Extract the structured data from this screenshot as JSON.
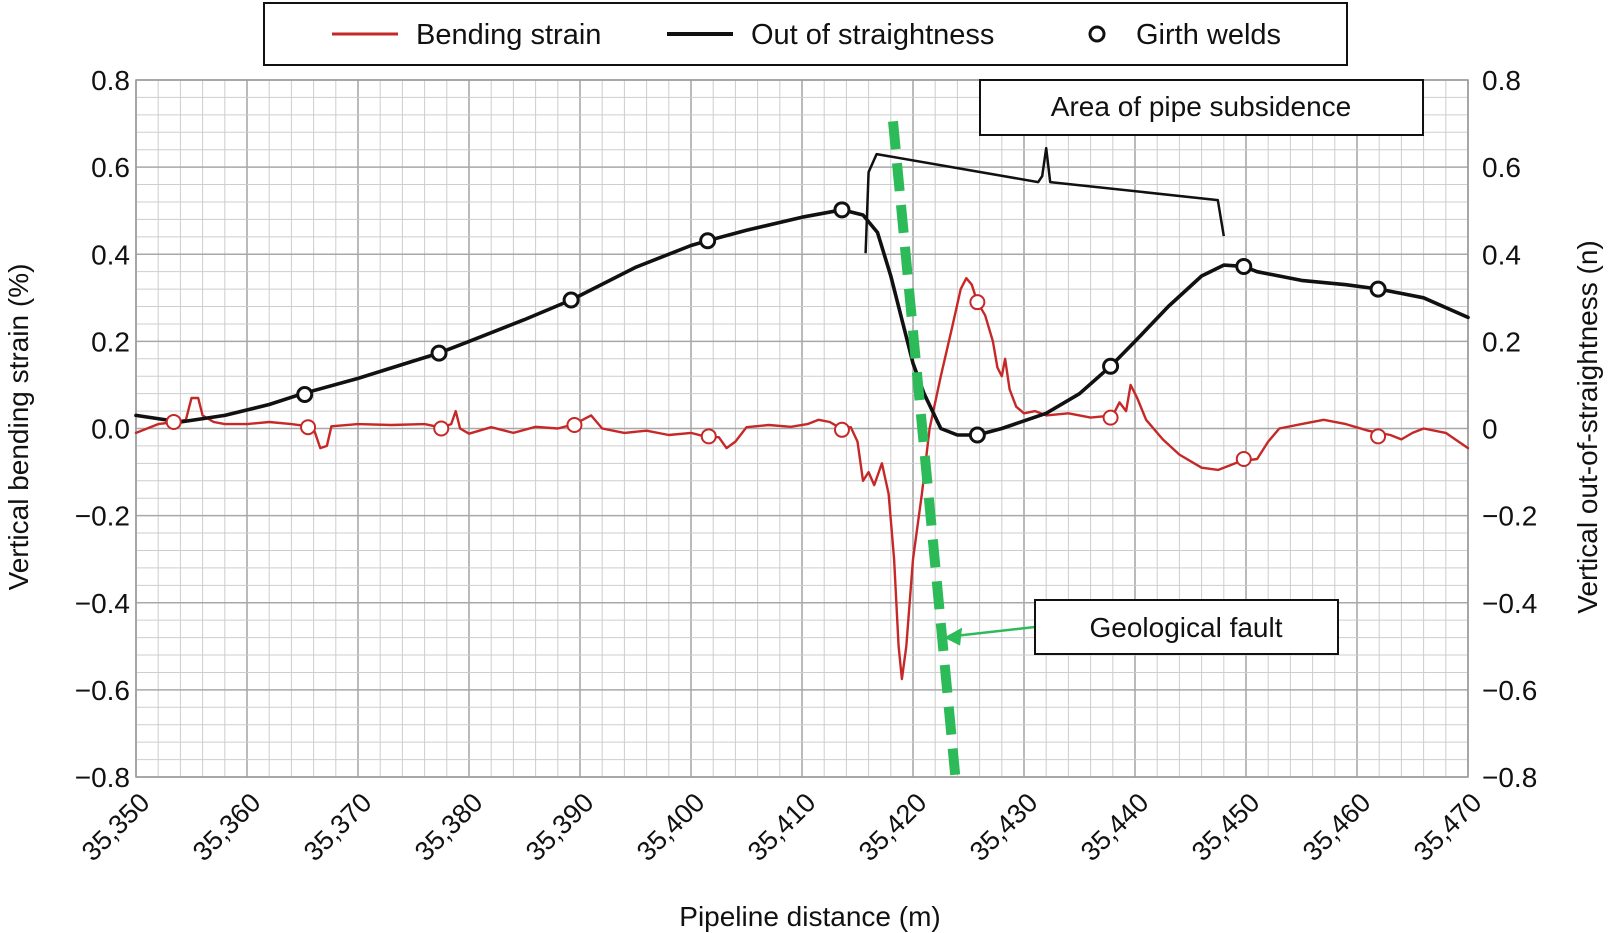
{
  "chart_data": {
    "type": "line",
    "title": "",
    "xlabel": "Pipeline distance (m)",
    "ylabel_left": "Vertical bending strain (%)",
    "ylabel_right": "Vertical out-of-straightness (n)",
    "xlim": [
      35350,
      35470
    ],
    "ylim": [
      -0.8,
      0.8
    ],
    "grid": true,
    "legend_position": "top-center",
    "x_ticks": [
      {
        "value": 35350,
        "label": "35,350"
      },
      {
        "value": 35360,
        "label": "35,360"
      },
      {
        "value": 35370,
        "label": "35,370"
      },
      {
        "value": 35380,
        "label": "35,380"
      },
      {
        "value": 35390,
        "label": "35,390"
      },
      {
        "value": 35400,
        "label": "35,400"
      },
      {
        "value": 35410,
        "label": "35,410"
      },
      {
        "value": 35420,
        "label": "35,420"
      },
      {
        "value": 35430,
        "label": "35,430"
      },
      {
        "value": 35440,
        "label": "35,440"
      },
      {
        "value": 35450,
        "label": "35,450"
      },
      {
        "value": 35460,
        "label": "35,460"
      },
      {
        "value": 35470,
        "label": "35,470"
      }
    ],
    "y_ticks_left": [
      {
        "value": 0.8,
        "label": "0.8"
      },
      {
        "value": 0.6,
        "label": "0.6"
      },
      {
        "value": 0.4,
        "label": "0.4"
      },
      {
        "value": 0.2,
        "label": "0.2"
      },
      {
        "value": 0.0,
        "label": "0.0"
      },
      {
        "value": -0.2,
        "label": "−0.2"
      },
      {
        "value": -0.4,
        "label": "−0.4"
      },
      {
        "value": -0.6,
        "label": "−0.6"
      },
      {
        "value": -0.8,
        "label": "−0.8"
      }
    ],
    "y_ticks_right": [
      {
        "value": 0.8,
        "label": "0.8"
      },
      {
        "value": 0.6,
        "label": "0.6"
      },
      {
        "value": 0.4,
        "label": "0.4"
      },
      {
        "value": 0.2,
        "label": "0.2"
      },
      {
        "value": 0.0,
        "label": "0"
      },
      {
        "value": -0.2,
        "label": "−0.2"
      },
      {
        "value": -0.4,
        "label": "−0.4"
      },
      {
        "value": -0.6,
        "label": "−0.6"
      },
      {
        "value": -0.8,
        "label": "−0.8"
      }
    ],
    "series": [
      {
        "name": "Bending strain",
        "color": "#c62828",
        "points": [
          [
            35350,
            -0.01
          ],
          [
            35352,
            0.01
          ],
          [
            35353.5,
            0.015
          ],
          [
            35354.5,
            0.02
          ],
          [
            35355,
            0.07
          ],
          [
            35355.6,
            0.07
          ],
          [
            35356,
            0.03
          ],
          [
            35357,
            0.015
          ],
          [
            35358,
            0.01
          ],
          [
            35360,
            0.01
          ],
          [
            35362,
            0.015
          ],
          [
            35364,
            0.01
          ],
          [
            35365.5,
            0.005
          ],
          [
            35366,
            0.0
          ],
          [
            35366.6,
            -0.045
          ],
          [
            35367.2,
            -0.04
          ],
          [
            35367.6,
            0.005
          ],
          [
            35370,
            0.01
          ],
          [
            35373,
            0.008
          ],
          [
            35376,
            0.01
          ],
          [
            35377.5,
            0.002
          ],
          [
            35378.4,
            0.01
          ],
          [
            35378.8,
            0.04
          ],
          [
            35379.2,
            0.0
          ],
          [
            35380,
            -0.012
          ],
          [
            35382,
            0.003
          ],
          [
            35384,
            -0.01
          ],
          [
            35386,
            0.004
          ],
          [
            35388,
            0.0
          ],
          [
            35389.5,
            0.01
          ],
          [
            35391,
            0.03
          ],
          [
            35392,
            0.0
          ],
          [
            35394,
            -0.01
          ],
          [
            35396,
            -0.005
          ],
          [
            35398,
            -0.015
          ],
          [
            35400,
            -0.01
          ],
          [
            35401.5,
            -0.02
          ],
          [
            35402.5,
            -0.02
          ],
          [
            35403.2,
            -0.045
          ],
          [
            35404,
            -0.03
          ],
          [
            35405,
            0.003
          ],
          [
            35407,
            0.008
          ],
          [
            35409,
            0.004
          ],
          [
            35410.5,
            0.01
          ],
          [
            35411.5,
            0.02
          ],
          [
            35412.5,
            0.015
          ],
          [
            35413.5,
            0.0
          ],
          [
            35414.4,
            0.003
          ],
          [
            35415,
            -0.03
          ],
          [
            35415.5,
            -0.12
          ],
          [
            35416,
            -0.1
          ],
          [
            35416.5,
            -0.13
          ],
          [
            35417.2,
            -0.08
          ],
          [
            35417.8,
            -0.15
          ],
          [
            35418.3,
            -0.3
          ],
          [
            35418.7,
            -0.5
          ],
          [
            35419,
            -0.575
          ],
          [
            35419.4,
            -0.5
          ],
          [
            35420,
            -0.3
          ],
          [
            35420.8,
            -0.15
          ],
          [
            35421.5,
            0.0
          ],
          [
            35422.5,
            0.12
          ],
          [
            35423.5,
            0.23
          ],
          [
            35424.3,
            0.32
          ],
          [
            35424.8,
            0.345
          ],
          [
            35425.3,
            0.33
          ],
          [
            35425.8,
            0.29
          ],
          [
            35426.5,
            0.26
          ],
          [
            35427.2,
            0.2
          ],
          [
            35427.6,
            0.14
          ],
          [
            35428,
            0.12
          ],
          [
            35428.3,
            0.16
          ],
          [
            35428.7,
            0.09
          ],
          [
            35429.3,
            0.05
          ],
          [
            35430,
            0.035
          ],
          [
            35431,
            0.04
          ],
          [
            35432,
            0.03
          ],
          [
            35434,
            0.035
          ],
          [
            35436,
            0.025
          ],
          [
            35438,
            0.03
          ],
          [
            35438.6,
            0.06
          ],
          [
            35439.2,
            0.04
          ],
          [
            35439.6,
            0.1
          ],
          [
            35440.2,
            0.07
          ],
          [
            35441,
            0.02
          ],
          [
            35442.5,
            -0.025
          ],
          [
            35444,
            -0.06
          ],
          [
            35446,
            -0.09
          ],
          [
            35447.5,
            -0.095
          ],
          [
            35449.5,
            -0.075
          ],
          [
            35451,
            -0.07
          ],
          [
            35452,
            -0.03
          ],
          [
            35453,
            0.0
          ],
          [
            35455,
            0.01
          ],
          [
            35457,
            0.02
          ],
          [
            35459,
            0.01
          ],
          [
            35461,
            -0.005
          ],
          [
            35463,
            -0.015
          ],
          [
            35464,
            -0.025
          ],
          [
            35465,
            -0.01
          ],
          [
            35466,
            0.0
          ],
          [
            35468,
            -0.01
          ],
          [
            35470,
            -0.045
          ]
        ]
      },
      {
        "name": "Out of straightness",
        "color": "#111111",
        "points": [
          [
            35350,
            0.03
          ],
          [
            35354,
            0.015
          ],
          [
            35358,
            0.03
          ],
          [
            35362,
            0.055
          ],
          [
            35365,
            0.08
          ],
          [
            35370,
            0.115
          ],
          [
            35375,
            0.155
          ],
          [
            35377.3,
            0.173
          ],
          [
            35380,
            0.2
          ],
          [
            35385,
            0.25
          ],
          [
            35389.2,
            0.295
          ],
          [
            35395,
            0.37
          ],
          [
            35400,
            0.42
          ],
          [
            35401.5,
            0.431
          ],
          [
            35405,
            0.455
          ],
          [
            35410,
            0.485
          ],
          [
            35413.6,
            0.502
          ],
          [
            35415.5,
            0.49
          ],
          [
            35416.8,
            0.45
          ],
          [
            35418,
            0.35
          ],
          [
            35419,
            0.25
          ],
          [
            35420,
            0.15
          ],
          [
            35421,
            0.08
          ],
          [
            35422.5,
            0.0
          ],
          [
            35424,
            -0.015
          ],
          [
            35425.8,
            -0.015
          ],
          [
            35428,
            0.0
          ],
          [
            35432,
            0.035
          ],
          [
            35435,
            0.08
          ],
          [
            35437.8,
            0.143
          ],
          [
            35440,
            0.2
          ],
          [
            35443,
            0.28
          ],
          [
            35446,
            0.35
          ],
          [
            35448,
            0.375
          ],
          [
            35449.8,
            0.372
          ],
          [
            35451,
            0.36
          ],
          [
            35455,
            0.34
          ],
          [
            35459,
            0.33
          ],
          [
            35462,
            0.32
          ],
          [
            35466,
            0.3
          ],
          [
            35470,
            0.255
          ]
        ]
      }
    ],
    "girth_welds_straightness": [
      [
        35365.2,
        0.078
      ],
      [
        35377.3,
        0.173
      ],
      [
        35389.2,
        0.295
      ],
      [
        35401.5,
        0.431
      ],
      [
        35413.6,
        0.502
      ],
      [
        35425.8,
        -0.015
      ],
      [
        35437.8,
        0.143
      ],
      [
        35449.8,
        0.372
      ],
      [
        35461.9,
        0.32
      ]
    ],
    "girth_welds_strain": [
      [
        35353.4,
        0.015
      ],
      [
        35365.5,
        0.003
      ],
      [
        35377.5,
        0.0
      ],
      [
        35389.5,
        0.008
      ],
      [
        35401.6,
        -0.018
      ],
      [
        35413.6,
        -0.003
      ],
      [
        35425.8,
        0.29
      ],
      [
        35437.8,
        0.025
      ],
      [
        35449.8,
        -0.07
      ],
      [
        35461.9,
        -0.018
      ]
    ],
    "geological_fault_line": {
      "color": "#2dbb59",
      "from": [
        35418.2,
        0.705
      ],
      "to": [
        35423.8,
        -0.795
      ]
    },
    "legend": [
      {
        "label": "Bending strain",
        "color": "#c62828",
        "marker": "line"
      },
      {
        "label": "Out of straightness",
        "color": "#111111",
        "marker": "line"
      },
      {
        "label": "Girth welds",
        "color": "#111111",
        "marker": "circle"
      }
    ],
    "annotations": {
      "subsidence_label": "Area of pipe subsidence",
      "fault_label": "Geological fault",
      "subsidence_bracket": {
        "x_start": 35416,
        "x_end": 35448,
        "x_mid": 35432,
        "y_top": 0.63,
        "y_bottom": 0.43
      },
      "fault_arrow_target": [
        35422.8,
        -0.48
      ]
    }
  }
}
